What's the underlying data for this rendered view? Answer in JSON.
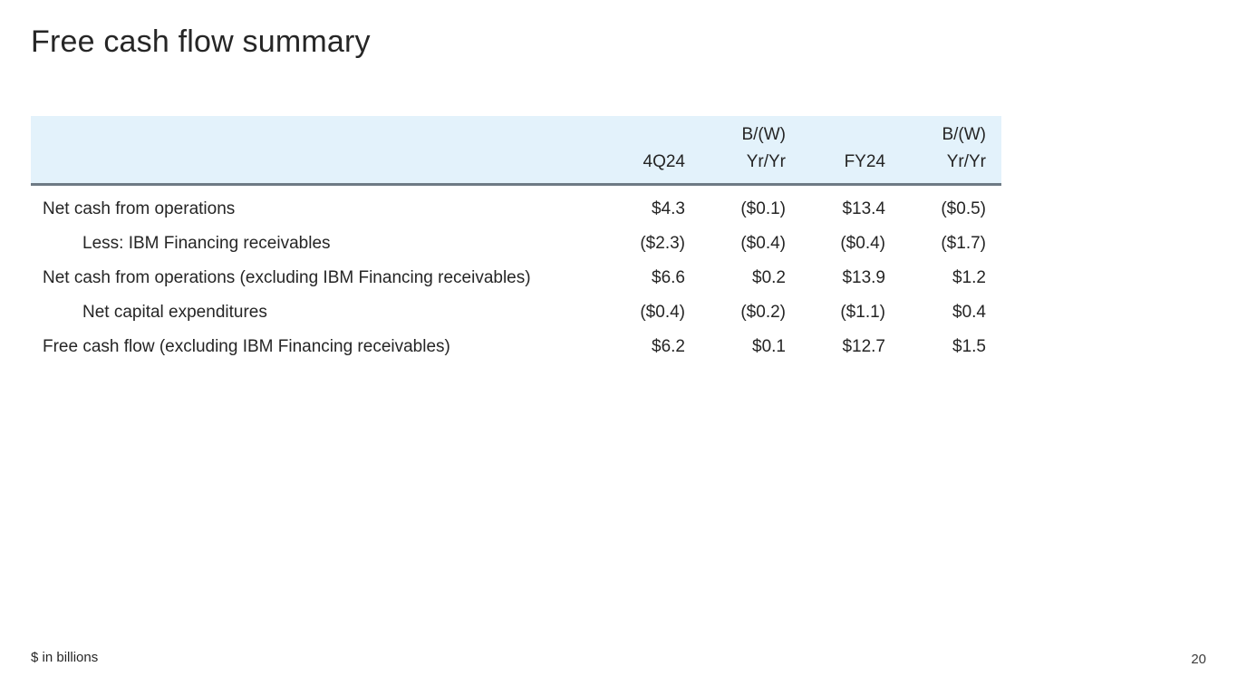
{
  "slide": {
    "title": "Free cash flow summary",
    "footnote": "$ in billions",
    "page_number": "20"
  },
  "colors": {
    "header_band_bg": "#E3F2FB",
    "header_border": "#6E7A84",
    "text": "#252525",
    "background": "#FFFFFF"
  },
  "table": {
    "header": {
      "line1": [
        "",
        "",
        "B/(W)",
        "",
        "B/(W)"
      ],
      "line2": [
        "",
        "4Q24",
        "Yr/Yr",
        "FY24",
        "Yr/Yr"
      ]
    },
    "rows": [
      {
        "label": "Net cash from operations",
        "indent": false,
        "values": [
          "$4.3",
          "($0.1)",
          "$13.4",
          "($0.5)"
        ]
      },
      {
        "label": "Less: IBM Financing receivables",
        "indent": true,
        "values": [
          "($2.3)",
          "($0.4)",
          "($0.4)",
          "($1.7)"
        ]
      },
      {
        "label": "Net cash from operations (excluding IBM Financing receivables)",
        "indent": false,
        "values": [
          "$6.6",
          "$0.2",
          "$13.9",
          "$1.2"
        ]
      },
      {
        "label": "Net capital expenditures",
        "indent": true,
        "values": [
          "($0.4)",
          "($0.2)",
          "($1.1)",
          "$0.4"
        ]
      },
      {
        "label": "Free cash flow (excluding IBM Financing receivables)",
        "indent": false,
        "values": [
          "$6.2",
          "$0.1",
          "$12.7",
          "$1.5"
        ]
      }
    ]
  }
}
